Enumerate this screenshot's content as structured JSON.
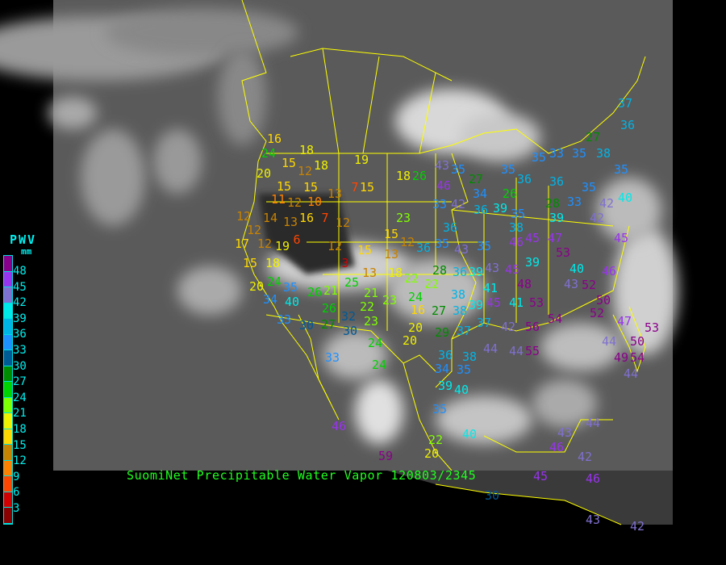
{
  "title": "SuomiNet Precipitable Water Vapor",
  "timestamp": "120803/2345",
  "legend": {
    "title": "PWV",
    "unit": "mm",
    "labels": [
      "48",
      "45",
      "42",
      "39",
      "36",
      "33",
      "30",
      "27",
      "24",
      "21",
      "18",
      "15",
      "12",
      "9",
      "6",
      "3"
    ],
    "colors": [
      "#8b008b",
      "#9933ee",
      "#8070d0",
      "#00eaea",
      "#00b4e6",
      "#1e90ff",
      "#005a96",
      "#008c00",
      "#00d200",
      "#80ff00",
      "#f0f000",
      "#ffd700",
      "#c88200",
      "#ff8000",
      "#ff4500",
      "#d20000",
      "#8b0000"
    ]
  },
  "map": {
    "background": "#5a5a5a",
    "boundary_color": "#ffff00",
    "station_values": [
      "16",
      "24",
      "18",
      "18",
      "19",
      "15",
      "15",
      "20",
      "15",
      "12",
      "11",
      "12",
      "10",
      "7",
      "15",
      "13",
      "14",
      "16",
      "7",
      "13",
      "12",
      "12",
      "12",
      "17",
      "12",
      "6",
      "12",
      "15",
      "15",
      "13",
      "12",
      "15",
      "18",
      "19",
      "3",
      "13",
      "18",
      "20",
      "24",
      "34",
      "35",
      "40",
      "26",
      "21",
      "25",
      "26",
      "30",
      "33",
      "32",
      "22",
      "21",
      "23",
      "27",
      "30",
      "23",
      "24",
      "16",
      "24",
      "22",
      "22",
      "28",
      "29",
      "27",
      "20",
      "20",
      "33",
      "24",
      "37",
      "38",
      "39",
      "41",
      "37",
      "42",
      "36",
      "34",
      "38",
      "39",
      "35",
      "40",
      "35",
      "18",
      "26",
      "43",
      "46",
      "33",
      "42",
      "35",
      "27",
      "34",
      "36",
      "36",
      "23",
      "35",
      "43",
      "36",
      "38",
      "36",
      "35",
      "39",
      "43",
      "45",
      "48",
      "53",
      "56",
      "55",
      "54",
      "44",
      "44",
      "45",
      "41",
      "46",
      "45",
      "47",
      "53",
      "39",
      "35",
      "38",
      "39",
      "28",
      "33",
      "35",
      "42",
      "40",
      "42",
      "45",
      "40",
      "52",
      "46",
      "43",
      "50",
      "52",
      "47",
      "50",
      "53",
      "44",
      "49",
      "54",
      "44",
      "33",
      "35",
      "38",
      "37",
      "36",
      "35",
      "27",
      "35",
      "36",
      "35",
      "36",
      "26",
      "39",
      "59",
      "22",
      "20",
      "40",
      "43",
      "44",
      "46",
      "42",
      "46",
      "46",
      "45",
      "30",
      "43",
      "42"
    ]
  }
}
